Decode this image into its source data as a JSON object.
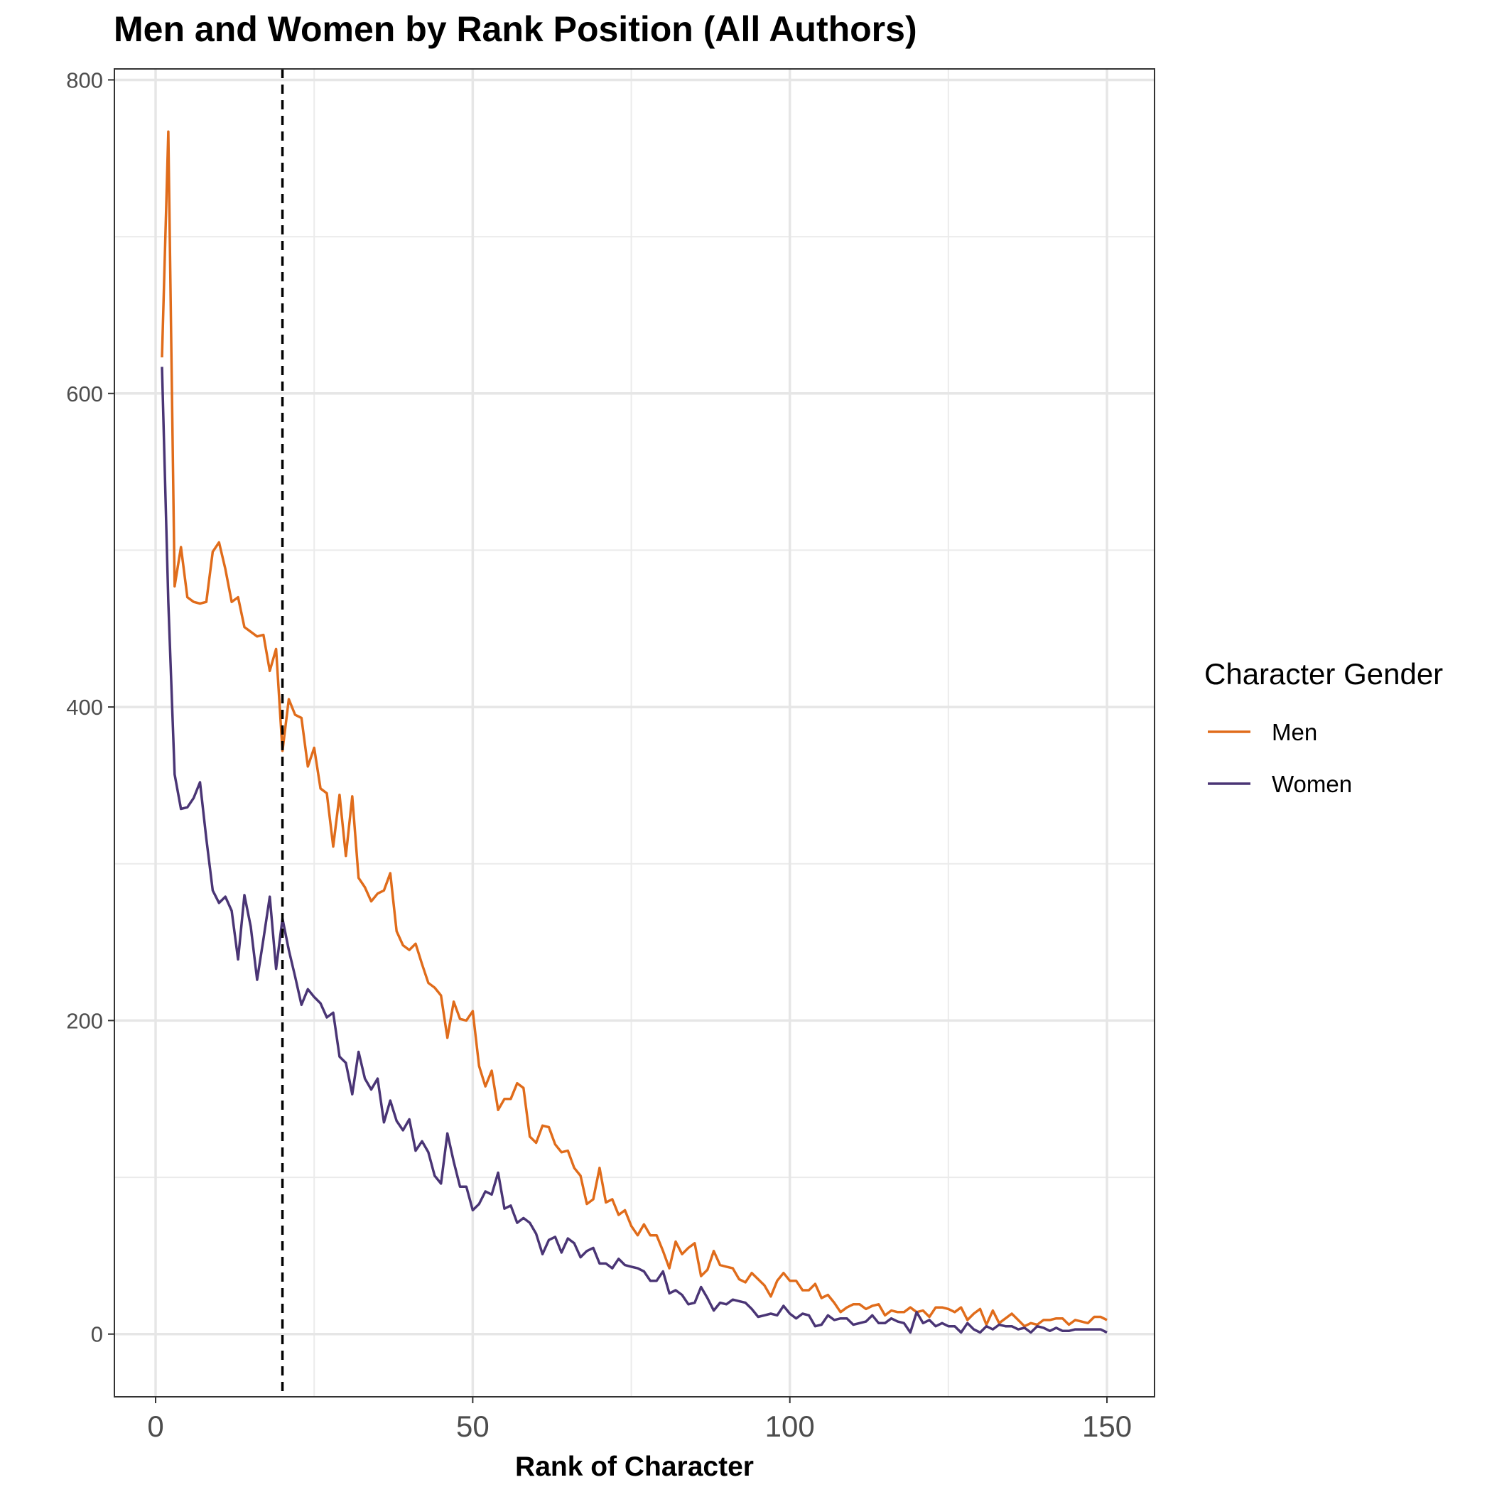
{
  "chart_data": {
    "type": "line",
    "title": "Men and Women by Rank Position (All Authors)",
    "xlabel": "Rank of Character",
    "ylabel": "",
    "xlim": [
      -6.5,
      157.5
    ],
    "ylim": [
      -40,
      807
    ],
    "xticks": [
      0,
      50,
      100,
      150
    ],
    "yticks": [
      0,
      200,
      400,
      600,
      800
    ],
    "x_tick_labels": [
      "0",
      "50",
      "100",
      "150"
    ],
    "y_tick_labels": [
      "0",
      "200",
      "400",
      "600",
      "800"
    ],
    "grid": true,
    "reference_line": {
      "x": 20,
      "style": "dashed",
      "color": "#000000"
    },
    "legend": {
      "title": "Character Gender",
      "position": "right"
    },
    "x": [
      1,
      2,
      3,
      4,
      5,
      6,
      7,
      8,
      9,
      10,
      11,
      12,
      13,
      14,
      15,
      16,
      17,
      18,
      19,
      20,
      21,
      22,
      23,
      24,
      25,
      26,
      27,
      28,
      29,
      30,
      31,
      32,
      33,
      34,
      35,
      36,
      37,
      38,
      39,
      40,
      41,
      42,
      43,
      44,
      45,
      46,
      47,
      48,
      49,
      50,
      51,
      52,
      53,
      54,
      55,
      56,
      57,
      58,
      59,
      60,
      61,
      62,
      63,
      64,
      65,
      66,
      67,
      68,
      69,
      70,
      71,
      72,
      73,
      74,
      75,
      76,
      77,
      78,
      79,
      80,
      81,
      82,
      83,
      84,
      85,
      86,
      87,
      88,
      89,
      90,
      91,
      92,
      93,
      94,
      95,
      96,
      97,
      98,
      99,
      100,
      101,
      102,
      103,
      104,
      105,
      106,
      107,
      108,
      109,
      110,
      111,
      112,
      113,
      114,
      115,
      116,
      117,
      118,
      119,
      120,
      121,
      122,
      123,
      124,
      125,
      126,
      127,
      128,
      129,
      130,
      131,
      132,
      133,
      134,
      135,
      136,
      137,
      138,
      139,
      140,
      141,
      142,
      143,
      144,
      145,
      146,
      147,
      148,
      149,
      150
    ],
    "series": [
      {
        "name": "Men",
        "color": "#e06c1b",
        "values": [
          623,
          767,
          477,
          502,
          470,
          467,
          466,
          467,
          499,
          505,
          488,
          467,
          470,
          451,
          448,
          445,
          446,
          423,
          437,
          372,
          405,
          395,
          393,
          362,
          374,
          348,
          345,
          311,
          344,
          305,
          343,
          291,
          285,
          276,
          281,
          283,
          294,
          257,
          248,
          245,
          249,
          236,
          224,
          221,
          216,
          189,
          212,
          201,
          200,
          206,
          171,
          158,
          168,
          143,
          150,
          150,
          160,
          157,
          126,
          122,
          133,
          132,
          121,
          116,
          117,
          106,
          101,
          83,
          86,
          106,
          84,
          86,
          76,
          79,
          69,
          63,
          70,
          63,
          63,
          53,
          42,
          59,
          51,
          55,
          58,
          37,
          41,
          53,
          44,
          43,
          42,
          35,
          33,
          39,
          35,
          31,
          24,
          34,
          39,
          34,
          34,
          28,
          28,
          32,
          23,
          25,
          20,
          14,
          17,
          19,
          19,
          16,
          18,
          19,
          12,
          15,
          14,
          14,
          17,
          14,
          15,
          11,
          17,
          17,
          16,
          14,
          17,
          9,
          13,
          16,
          6,
          15,
          7,
          10,
          13,
          9,
          5,
          7,
          6,
          9,
          9,
          10,
          10,
          6,
          9,
          8,
          7,
          11,
          11,
          9
        ]
      },
      {
        "name": "Women",
        "color": "#4a3575",
        "values": [
          617,
          467,
          357,
          335,
          336,
          342,
          352,
          316,
          283,
          275,
          279,
          270,
          239,
          280,
          260,
          226,
          252,
          279,
          233,
          265,
          245,
          228,
          210,
          220,
          215,
          211,
          202,
          205,
          177,
          173,
          153,
          180,
          163,
          156,
          163,
          135,
          149,
          136,
          130,
          137,
          117,
          123,
          116,
          101,
          96,
          128,
          110,
          94,
          94,
          79,
          83,
          91,
          89,
          103,
          80,
          82,
          71,
          74,
          71,
          64,
          51,
          60,
          62,
          52,
          61,
          58,
          49,
          53,
          55,
          45,
          45,
          42,
          48,
          44,
          43,
          42,
          40,
          34,
          34,
          40,
          26,
          28,
          25,
          19,
          20,
          30,
          23,
          15,
          20,
          19,
          22,
          21,
          20,
          16,
          11,
          12,
          13,
          12,
          18,
          13,
          10,
          13,
          12,
          5,
          6,
          12,
          9,
          10,
          10,
          6,
          7,
          8,
          12,
          7,
          7,
          10,
          8,
          7,
          1,
          14,
          7,
          9,
          5,
          7,
          5,
          5,
          1,
          7,
          3,
          1,
          5,
          3,
          6,
          5,
          5,
          3,
          4,
          1,
          5,
          4,
          2,
          4,
          2,
          2,
          3,
          3,
          3,
          3,
          3,
          1
        ]
      }
    ]
  }
}
